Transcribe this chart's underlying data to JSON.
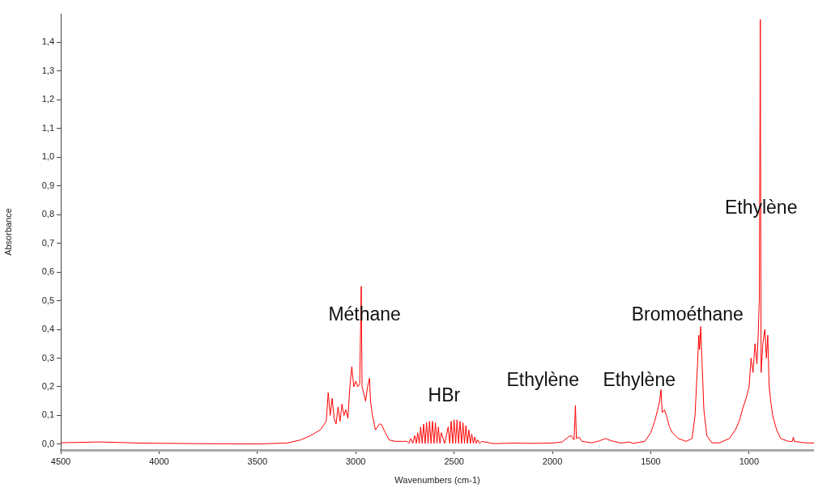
{
  "chart_data": {
    "type": "line",
    "xlabel": "Wavenumbers (cm-1)",
    "ylabel": "Absorbance",
    "xlim": [
      4500,
      670
    ],
    "ylim": [
      -0.02,
      1.5
    ],
    "xticks": [
      4500,
      4000,
      3500,
      3000,
      2500,
      2000,
      1500,
      1000
    ],
    "yticks": [
      {
        "value": 0,
        "label": "0,0"
      },
      {
        "value": 0.1,
        "label": "0,1"
      },
      {
        "value": 0.2,
        "label": "0,2"
      },
      {
        "value": 0.3,
        "label": "0,3"
      },
      {
        "value": 0.4,
        "label": "0,4"
      },
      {
        "value": 0.5,
        "label": "0,5"
      },
      {
        "value": 0.6,
        "label": "0,6"
      },
      {
        "value": 0.7,
        "label": "0,7"
      },
      {
        "value": 0.8,
        "label": "0,8"
      },
      {
        "value": 0.9,
        "label": "0,9"
      },
      {
        "value": 1.0,
        "label": "1,0"
      },
      {
        "value": 1.1,
        "label": "1,1"
      },
      {
        "value": 1.2,
        "label": "1,2"
      },
      {
        "value": 1.3,
        "label": "1,3"
      },
      {
        "value": 1.4,
        "label": "1,4"
      }
    ],
    "grid": false,
    "legend": false,
    "marker": "none",
    "line_style": "solid",
    "annotations": [
      {
        "text": "Méthane",
        "x": 2955,
        "y": 0.45
      },
      "HBr",
      "Ethylène",
      "Ethylène",
      "Bromoéthane",
      {
        "text": "Ethylène",
        "x": 939,
        "y": 0.82
      }
    ],
    "series": [
      {
        "color": "#ff0000",
        "x": [
          4500,
          4300,
          4100,
          3800,
          3500,
          3350,
          3280,
          3230,
          3180,
          3150,
          3140,
          3130,
          3120,
          3110,
          3100,
          3090,
          3080,
          3070,
          3060,
          3050,
          3040,
          3030,
          3020,
          3010,
          3000,
          2990,
          2980,
          2972,
          2968,
          2960,
          2950,
          2940,
          2930,
          2925,
          2915,
          2900,
          2880,
          2870,
          2850,
          2830,
          2800,
          2760,
          2740,
          2730,
          2720,
          2710,
          2700,
          2692,
          2685,
          2677,
          2670,
          2662,
          2655,
          2647,
          2640,
          2632,
          2625,
          2617,
          2610,
          2602,
          2595,
          2587,
          2580,
          2572,
          2565,
          2548,
          2530,
          2522,
          2515,
          2507,
          2500,
          2492,
          2485,
          2477,
          2470,
          2462,
          2455,
          2447,
          2440,
          2432,
          2425,
          2417,
          2410,
          2402,
          2395,
          2387,
          2380,
          2370,
          2360,
          2300,
          2200,
          2100,
          2000,
          1950,
          1920,
          1905,
          1890,
          1883,
          1878,
          1865,
          1850,
          1800,
          1760,
          1730,
          1700,
          1650,
          1610,
          1590,
          1530,
          1500,
          1480,
          1465,
          1455,
          1448,
          1442,
          1430,
          1420,
          1405,
          1390,
          1360,
          1320,
          1290,
          1275,
          1262,
          1256,
          1252,
          1246,
          1240,
          1230,
          1215,
          1190,
          1150,
          1100,
          1070,
          1050,
          1030,
          1015,
          1000,
          990,
          980,
          970,
          960,
          955,
          948,
          943,
          939,
          930,
          920,
          912,
          905,
          898,
          890,
          880,
          860,
          840,
          800,
          780,
          775,
          770,
          720,
          670
        ],
        "values": [
          0.005,
          0.008,
          0.004,
          0.002,
          0.001,
          0.004,
          0.015,
          0.03,
          0.05,
          0.08,
          0.18,
          0.1,
          0.16,
          0.09,
          0.07,
          0.13,
          0.08,
          0.14,
          0.1,
          0.12,
          0.09,
          0.2,
          0.27,
          0.2,
          0.22,
          0.2,
          0.21,
          0.55,
          0.2,
          0.18,
          0.15,
          0.2,
          0.23,
          0.15,
          0.1,
          0.05,
          0.07,
          0.07,
          0.04,
          0.015,
          0.01,
          0.01,
          0.01,
          0.003,
          0.02,
          0.003,
          0.03,
          0.003,
          0.04,
          0.003,
          0.06,
          0.003,
          0.07,
          0.003,
          0.075,
          0.003,
          0.08,
          0.003,
          0.08,
          0.003,
          0.075,
          0.003,
          0.06,
          0.003,
          0.04,
          0.003,
          0.06,
          0.003,
          0.08,
          0.003,
          0.085,
          0.003,
          0.085,
          0.003,
          0.08,
          0.003,
          0.075,
          0.003,
          0.065,
          0.003,
          0.05,
          0.003,
          0.035,
          0.003,
          0.025,
          0.003,
          0.015,
          0.003,
          0.01,
          0.002,
          0.004,
          0.003,
          0.004,
          0.008,
          0.025,
          0.03,
          0.015,
          0.135,
          0.02,
          0.025,
          0.01,
          0.005,
          0.012,
          0.02,
          0.012,
          0.004,
          0.008,
          0.003,
          0.01,
          0.04,
          0.08,
          0.12,
          0.15,
          0.19,
          0.11,
          0.12,
          0.1,
          0.06,
          0.04,
          0.02,
          0.01,
          0.02,
          0.1,
          0.28,
          0.38,
          0.33,
          0.41,
          0.3,
          0.12,
          0.03,
          0.005,
          0.005,
          0.02,
          0.05,
          0.08,
          0.13,
          0.16,
          0.2,
          0.3,
          0.25,
          0.35,
          0.28,
          0.36,
          0.5,
          1.48,
          0.25,
          0.35,
          0.4,
          0.3,
          0.38,
          0.2,
          0.15,
          0.1,
          0.05,
          0.02,
          0.01,
          0.01,
          0.025,
          0.01,
          0.005,
          0.004
        ]
      }
    ]
  }
}
